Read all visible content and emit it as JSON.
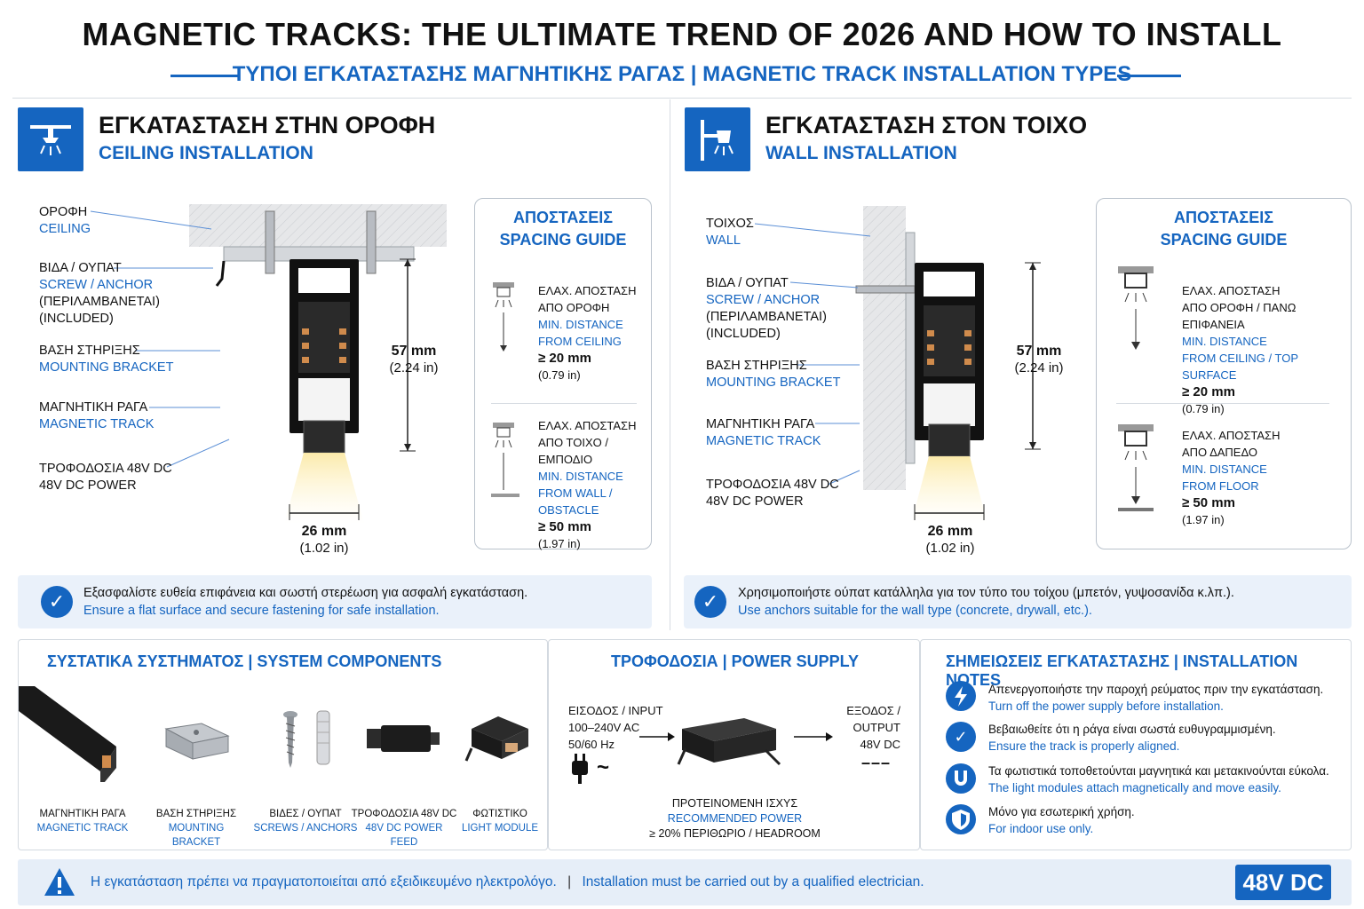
{
  "header": {
    "title": "MAGNETIC TRACKS: THE ULTIMATE TREND OF 2026 AND HOW TO INSTALL",
    "subtitle": "ΤΥΠΟΙ ΕΓΚΑΤΑΣΤΑΣΗΣ ΜΑΓΝΗΤΙΚΗΣ ΡΑΓΑΣ | MAGNETIC TRACK INSTALLATION TYPES"
  },
  "ceiling": {
    "title_gr": "ΕΓΚΑΤΑΣΤΑΣΗ ΣΤΗΝ ΟΡΟΦΗ",
    "title_en": "CEILING INSTALLATION",
    "labels": {
      "surface_gr": "ΟΡΟΦΗ",
      "surface_en": "CEILING",
      "screw_gr": "ΒΙΔΑ / ΟΥΠΑΤ",
      "screw_en": "SCREW / ANCHOR",
      "screw_note_gr": "(ΠΕΡΙΛΑΜΒΑΝΕΤΑΙ)",
      "screw_note_en": "(INCLUDED)",
      "bracket_gr": "ΒΑΣΗ ΣΤΗΡΙΞΗΣ",
      "bracket_en": "MOUNTING BRACKET",
      "track_gr": "ΜΑΓΝΗΤΙΚΗ ΡΑΓΑ",
      "track_en": "MAGNETIC TRACK",
      "power_gr": "ΤΡΟΦΟΔΟΣΙΑ 48V DC",
      "power_en": "48V DC POWER"
    },
    "height_mm": "57 mm",
    "height_in": "(2.24 in)",
    "width_mm": "26 mm",
    "width_in": "(1.02 in)",
    "spacing": {
      "title_gr": "ΑΠΟΣΤΑΣΕΙΣ",
      "title_en": "SPACING GUIDE",
      "items": [
        {
          "gr1": "ΕΛΑΧ. ΑΠΟΣΤΑΣΗ",
          "gr2": "ΑΠΟ ΟΡΟΦΗ",
          "en1": "MIN. DISTANCE",
          "en2": "FROM CEILING",
          "value": "≥ 20 mm",
          "value_in": "(0.79 in)"
        },
        {
          "gr1": "ΕΛΑΧ. ΑΠΟΣΤΑΣΗ",
          "gr2": "ΑΠΟ ΤΟΙΧΟ / ΕΜΠΟΔΙΟ",
          "en1": "MIN. DISTANCE",
          "en2": "FROM WALL / OBSTACLE",
          "value": "≥ 50 mm",
          "value_in": "(1.97 in)"
        }
      ]
    },
    "note_gr": "Εξασφαλίστε ευθεία επιφάνεια και σωστή στερέωση για ασφαλή εγκατάσταση.",
    "note_en": "Ensure a flat surface and secure fastening for safe installation."
  },
  "wall": {
    "title_gr": "ΕΓΚΑΤΑΣΤΑΣΗ ΣΤΟΝ ΤΟΙΧΟ",
    "title_en": "WALL INSTALLATION",
    "labels": {
      "surface_gr": "ΤΟΙΧΟΣ",
      "surface_en": "WALL",
      "screw_gr": "ΒΙΔΑ / ΟΥΠΑΤ",
      "screw_en": "SCREW / ANCHOR",
      "screw_note_gr": "(ΠΕΡΙΛΑΜΒΑΝΕΤΑΙ)",
      "screw_note_en": "(INCLUDED)",
      "bracket_gr": "ΒΑΣΗ ΣΤΗΡΙΞΗΣ",
      "bracket_en": "MOUNTING BRACKET",
      "track_gr": "ΜΑΓΝΗΤΙΚΗ ΡΑΓΑ",
      "track_en": "MAGNETIC TRACK",
      "power_gr": "ΤΡΟΦΟΔΟΣΙΑ 48V DC",
      "power_en": "48V DC POWER"
    },
    "height_mm": "57 mm",
    "height_in": "(2.24 in)",
    "width_mm": "26 mm",
    "width_in": "(1.02 in)",
    "spacing": {
      "title_gr": "ΑΠΟΣΤΑΣΕΙΣ",
      "title_en": "SPACING GUIDE",
      "items": [
        {
          "gr1": "ΕΛΑΧ. ΑΠΟΣΤΑΣΗ",
          "gr2": "ΑΠΟ ΟΡΟΦΗ / ΠΑΝΩ ΕΠΙΦΑΝΕΙΑ",
          "en1": "MIN. DISTANCE",
          "en2": "FROM CEILING / TOP SURFACE",
          "value": "≥ 20 mm",
          "value_in": "(0.79 in)"
        },
        {
          "gr1": "ΕΛΑΧ. ΑΠΟΣΤΑΣΗ",
          "gr2": "ΑΠΟ ΔΑΠΕΔΟ",
          "en1": "MIN. DISTANCE",
          "en2": "FROM FLOOR",
          "value": "≥ 50 mm",
          "value_in": "(1.97 in)"
        }
      ]
    },
    "note_gr": "Χρησιμοποιήστε ούπατ κατάλληλα για τον τύπο του τοίχου (μπετόν, γυψοσανίδα κ.λπ.).",
    "note_en": "Use anchors suitable for the wall type (concrete, drywall, etc.)."
  },
  "components": {
    "title": "ΣΥΣΤΑΤΙΚΑ ΣΥΣΤΗΜΑΤΟΣ | SYSTEM COMPONENTS",
    "items": [
      {
        "gr": "ΜΑΓΝΗΤΙΚΗ ΡΑΓΑ",
        "en": "MAGNETIC TRACK"
      },
      {
        "gr": "ΒΑΣΗ ΣΤΗΡΙΞΗΣ",
        "en": "MOUNTING BRACKET"
      },
      {
        "gr": "ΒΙΔΕΣ / ΟΥΠΑΤ",
        "en": "SCREWS / ANCHORS"
      },
      {
        "gr": "ΤΡΟΦΟΔΟΣΙΑ 48V DC",
        "en": "48V DC POWER FEED"
      },
      {
        "gr": "ΦΩΤΙΣΤΙΚΟ",
        "en": "LIGHT MODULE"
      }
    ]
  },
  "power": {
    "title": "ΤΡΟΦΟΔΟΣΙΑ | POWER SUPPLY",
    "input_label": "ΕΙΣΟΔΟΣ / INPUT",
    "input_v": "100–240V AC",
    "input_hz": "50/60 Hz",
    "ac_symbol": "~",
    "output_label1": "ΕΞΟΔΟΣ /",
    "output_label2": "OUTPUT",
    "output_v": "48V DC",
    "dc_symbol": "– – –",
    "rec_gr": "ΠΡΟΤΕΙΝΟΜΕΝΗ ΙΣΧΥΣ",
    "rec_en": "RECOMMENDED POWER",
    "rec_value": "≥ 20% ΠΕΡΙΘΩΡΙΟ / HEADROOM"
  },
  "notes": {
    "title": "ΣΗΜΕΙΩΣΕΙΣ ΕΓΚΑΤΑΣΤΑΣΗΣ | INSTALLATION NOTES",
    "items": [
      {
        "icon": "lightning-icon",
        "gr": "Απενεργοποιήστε την παροχή ρεύματος πριν την εγκατάσταση.",
        "en": "Turn off the power supply before installation."
      },
      {
        "icon": "check-icon",
        "gr": "Βεβαιωθείτε ότι η ράγα είναι σωστά ευθυγραμμισμένη.",
        "en": "Ensure the track is properly aligned."
      },
      {
        "icon": "magnet-icon",
        "gr": "Τα φωτιστικά τοποθετούνται μαγνητικά και μετακινούνται εύκολα.",
        "en": "The light modules attach magnetically and move easily."
      },
      {
        "icon": "shield-icon",
        "gr": "Μόνο για εσωτερική χρήση.",
        "en": "For indoor use only."
      }
    ]
  },
  "footer": {
    "text_gr": "Η εγκατάσταση πρέπει να πραγματοποιείται από εξειδικευμένο ηλεκτρολόγο.",
    "separator": "|",
    "text_en": "Installation must be carried out by a qualified electrician.",
    "badge": "48V DC"
  },
  "colors": {
    "accent": "#1565c0",
    "text": "#111111",
    "panel_bg": "#eaf1fa"
  }
}
